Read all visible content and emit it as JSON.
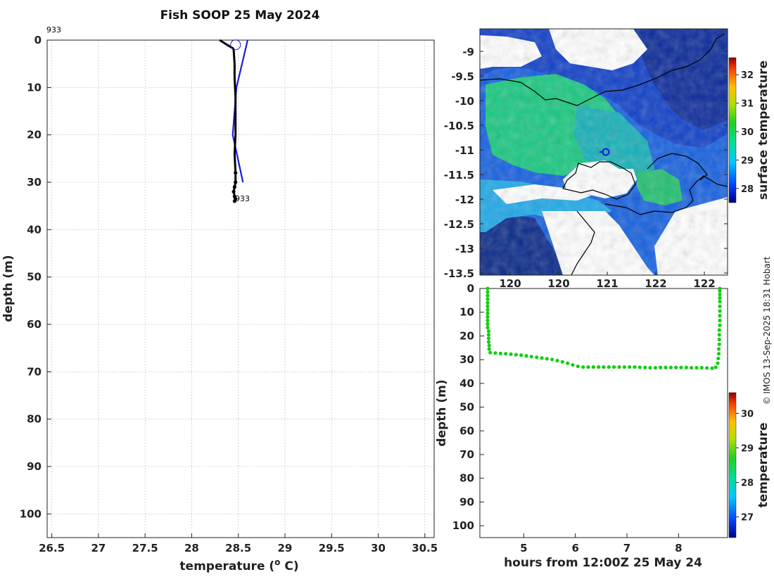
{
  "credit": "© IMOS 13-Sep-2025 18:31 Hobart",
  "chart_data": [
    {
      "id": "profile",
      "type": "line",
      "title": "Fish SOOP 25 May 2024",
      "xlabel": "temperature (",
      "xlabel_sup": "o",
      "xlabel_tail": " C)",
      "ylabel": "depth (m)",
      "xlim": [
        26.45,
        30.6
      ],
      "ylim": [
        0,
        105
      ],
      "y_reversed": true,
      "xticks": [
        "26.5",
        "27",
        "27.5",
        "28",
        "28.5",
        "29",
        "29.5",
        "30",
        "30.5"
      ],
      "yticks": [
        "0",
        "10",
        "20",
        "30",
        "40",
        "50",
        "60",
        "70",
        "80",
        "90",
        "100"
      ],
      "grid": true,
      "profile_id_top": "933",
      "profile_id_bottom": "933",
      "series": [
        {
          "name": "fish profile",
          "color": "#000000",
          "x": [
            28.3,
            28.38,
            28.44,
            28.45,
            28.46,
            28.46,
            28.47,
            28.47,
            28.47,
            28.46,
            28.47,
            28.47,
            28.46,
            28.45,
            28.46,
            28.47,
            28.46
          ],
          "y": [
            0,
            1,
            1.7,
            2,
            5,
            8,
            12,
            16,
            20,
            24,
            28,
            30,
            31,
            32,
            33,
            33.5,
            34
          ]
        },
        {
          "name": "reference profile",
          "color": "#1a1adf",
          "x": [
            28.6,
            28.48,
            28.44,
            28.55
          ],
          "y": [
            0,
            10,
            20,
            30
          ]
        }
      ],
      "markers": [
        {
          "x": 28.47,
          "y": 1,
          "style": "open-circle"
        }
      ]
    },
    {
      "id": "map",
      "type": "heatmap",
      "ytick_labels": [
        "-9",
        "-9.5",
        "-10",
        "-10.5",
        "-11",
        "-11.5",
        "-12",
        "-12.5",
        "-13",
        "-13.5"
      ],
      "xtick_labels": [
        "120",
        "120",
        "121",
        "122",
        "122"
      ],
      "colorbar": {
        "label": "surface temperature",
        "ticks": [
          "28",
          "29",
          "30",
          "31",
          "32"
        ],
        "range": [
          27.5,
          32.6
        ]
      },
      "ship_position": {
        "lon": 121.0,
        "lat": -11.03
      }
    },
    {
      "id": "track",
      "type": "scatter",
      "xlabel": "hours from 12:00Z 25 May 24",
      "ylabel": "depth (m)",
      "xlim": [
        4.15,
        8.95
      ],
      "ylim": [
        0,
        105
      ],
      "y_reversed": true,
      "xticks": [
        "5",
        "6",
        "7",
        "8"
      ],
      "yticks": [
        "0",
        "10",
        "20",
        "30",
        "40",
        "50",
        "60",
        "70",
        "80",
        "90",
        "100"
      ],
      "colorbar": {
        "label": "temperature",
        "ticks": [
          "27",
          "28",
          "29",
          "30"
        ],
        "range": [
          26.4,
          30.6
        ]
      },
      "point_color": "#10d010",
      "x": [
        4.3,
        4.3,
        4.3,
        4.3,
        4.3,
        4.3,
        4.3,
        4.3,
        4.3,
        4.3,
        4.3,
        4.3,
        4.32,
        4.32,
        4.32,
        4.32,
        4.33,
        4.33,
        4.35,
        4.45,
        4.55,
        4.65,
        4.75,
        4.85,
        4.95,
        5.05,
        5.15,
        5.25,
        5.35,
        5.45,
        5.55,
        5.65,
        5.75,
        5.85,
        5.95,
        6.05,
        6.15,
        6.25,
        6.35,
        6.45,
        6.55,
        6.65,
        6.75,
        6.85,
        6.95,
        7.05,
        7.15,
        7.25,
        7.35,
        7.45,
        7.55,
        7.65,
        7.75,
        7.85,
        7.95,
        8.05,
        8.15,
        8.25,
        8.35,
        8.45,
        8.55,
        8.65,
        8.72,
        8.76,
        8.77,
        8.78,
        8.78,
        8.79,
        8.79,
        8.79,
        8.79,
        8.8,
        8.8,
        8.8,
        8.8,
        8.8,
        8.8,
        8.8,
        8.8,
        8.8,
        8.8
      ],
      "y": [
        0,
        1.5,
        3,
        4.5,
        6,
        7.5,
        9,
        10.5,
        12,
        13.5,
        15,
        16.5,
        18,
        19.5,
        21,
        22.5,
        24,
        25.5,
        27,
        27.2,
        27.4,
        27.5,
        27.7,
        27.9,
        28.1,
        28.4,
        28.7,
        29.0,
        29.3,
        29.6,
        29.9,
        30.4,
        30.9,
        31.5,
        32.2,
        32.8,
        33.1,
        33.1,
        33.1,
        33.1,
        33.1,
        33.1,
        33.1,
        33.1,
        33.1,
        33.1,
        33.1,
        33.2,
        33.3,
        33.4,
        33.4,
        33.3,
        33.3,
        33.3,
        33.3,
        33.3,
        33.3,
        33.4,
        33.4,
        33.4,
        33.5,
        33.6,
        33.2,
        31.5,
        29.5,
        27.5,
        25.5,
        23.5,
        21.5,
        19.5,
        17.5,
        15.5,
        13.5,
        11.5,
        9.5,
        7.5,
        5.5,
        4,
        2.5,
        1,
        0
      ]
    }
  ]
}
